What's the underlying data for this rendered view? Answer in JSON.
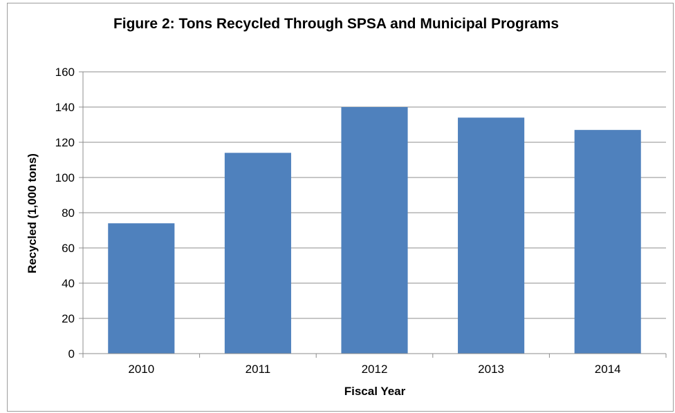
{
  "chart_data": {
    "type": "bar",
    "title": "Figure 2:  Tons Recycled Through SPSA and Municipal Programs",
    "xlabel": "Fiscal Year",
    "ylabel": "Recycled (1,000 tons)",
    "categories": [
      "2010",
      "2011",
      "2012",
      "2013",
      "2014"
    ],
    "series": [
      {
        "values": [
          74,
          114,
          140,
          134,
          127
        ]
      }
    ],
    "ylim": [
      0,
      160
    ],
    "yticks": [
      0,
      20,
      40,
      60,
      80,
      100,
      120,
      140,
      160
    ],
    "grid": true,
    "legend": "none",
    "bar_color": "#4F81BD",
    "grid_color": "#8c8c8c"
  }
}
